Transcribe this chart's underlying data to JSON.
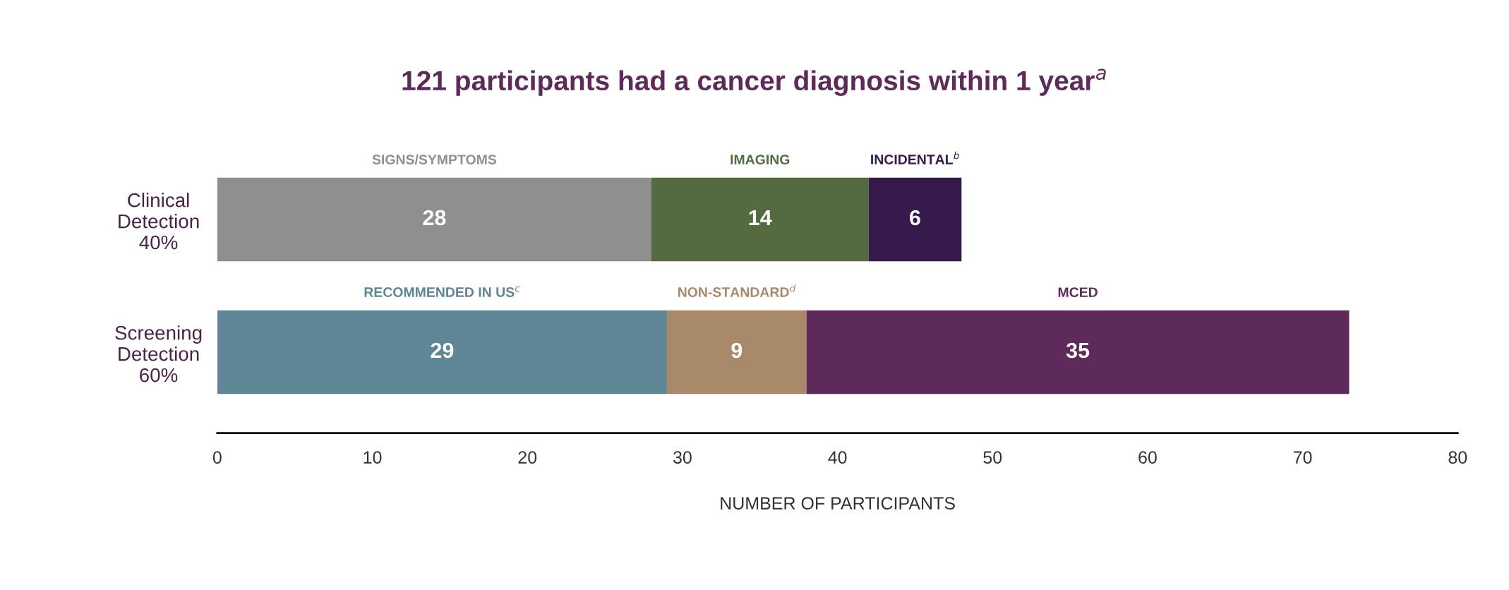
{
  "chart_data": {
    "type": "bar",
    "orientation": "horizontal",
    "stacked": true,
    "title": "121 participants had a cancer diagnosis within 1 year$^{a}$",
    "xlabel": "NUMBER OF PARTICIPANTS",
    "categories": [
      "Clinical\nDetection\n40%",
      "Screening\nDetection\n60%"
    ],
    "series": [
      {
        "name": "SIGNS/SYMPTOMS",
        "color": "#8f8f8f",
        "values": [
          28,
          null
        ]
      },
      {
        "name": "IMAGING",
        "color": "#536b3f",
        "values": [
          14,
          null
        ]
      },
      {
        "name": "INCIDENTAL$^{b}$",
        "color": "#361a4c",
        "values": [
          6,
          null
        ]
      },
      {
        "name": "RECOMMENDED IN US$^{c}$",
        "color": "#5f8694",
        "values": [
          null,
          29
        ]
      },
      {
        "name": "NON-STANDARD$^{d}$",
        "color": "#a88a6b",
        "values": [
          null,
          9
        ]
      },
      {
        "name": "MCED",
        "color": "#5e2a5a",
        "values": [
          null,
          35
        ]
      }
    ],
    "xlim": [
      0,
      80
    ],
    "xticks": [
      0,
      10,
      20,
      30,
      40,
      50,
      60,
      70,
      80
    ],
    "data_labels": true,
    "grid": false,
    "legend": false
  }
}
